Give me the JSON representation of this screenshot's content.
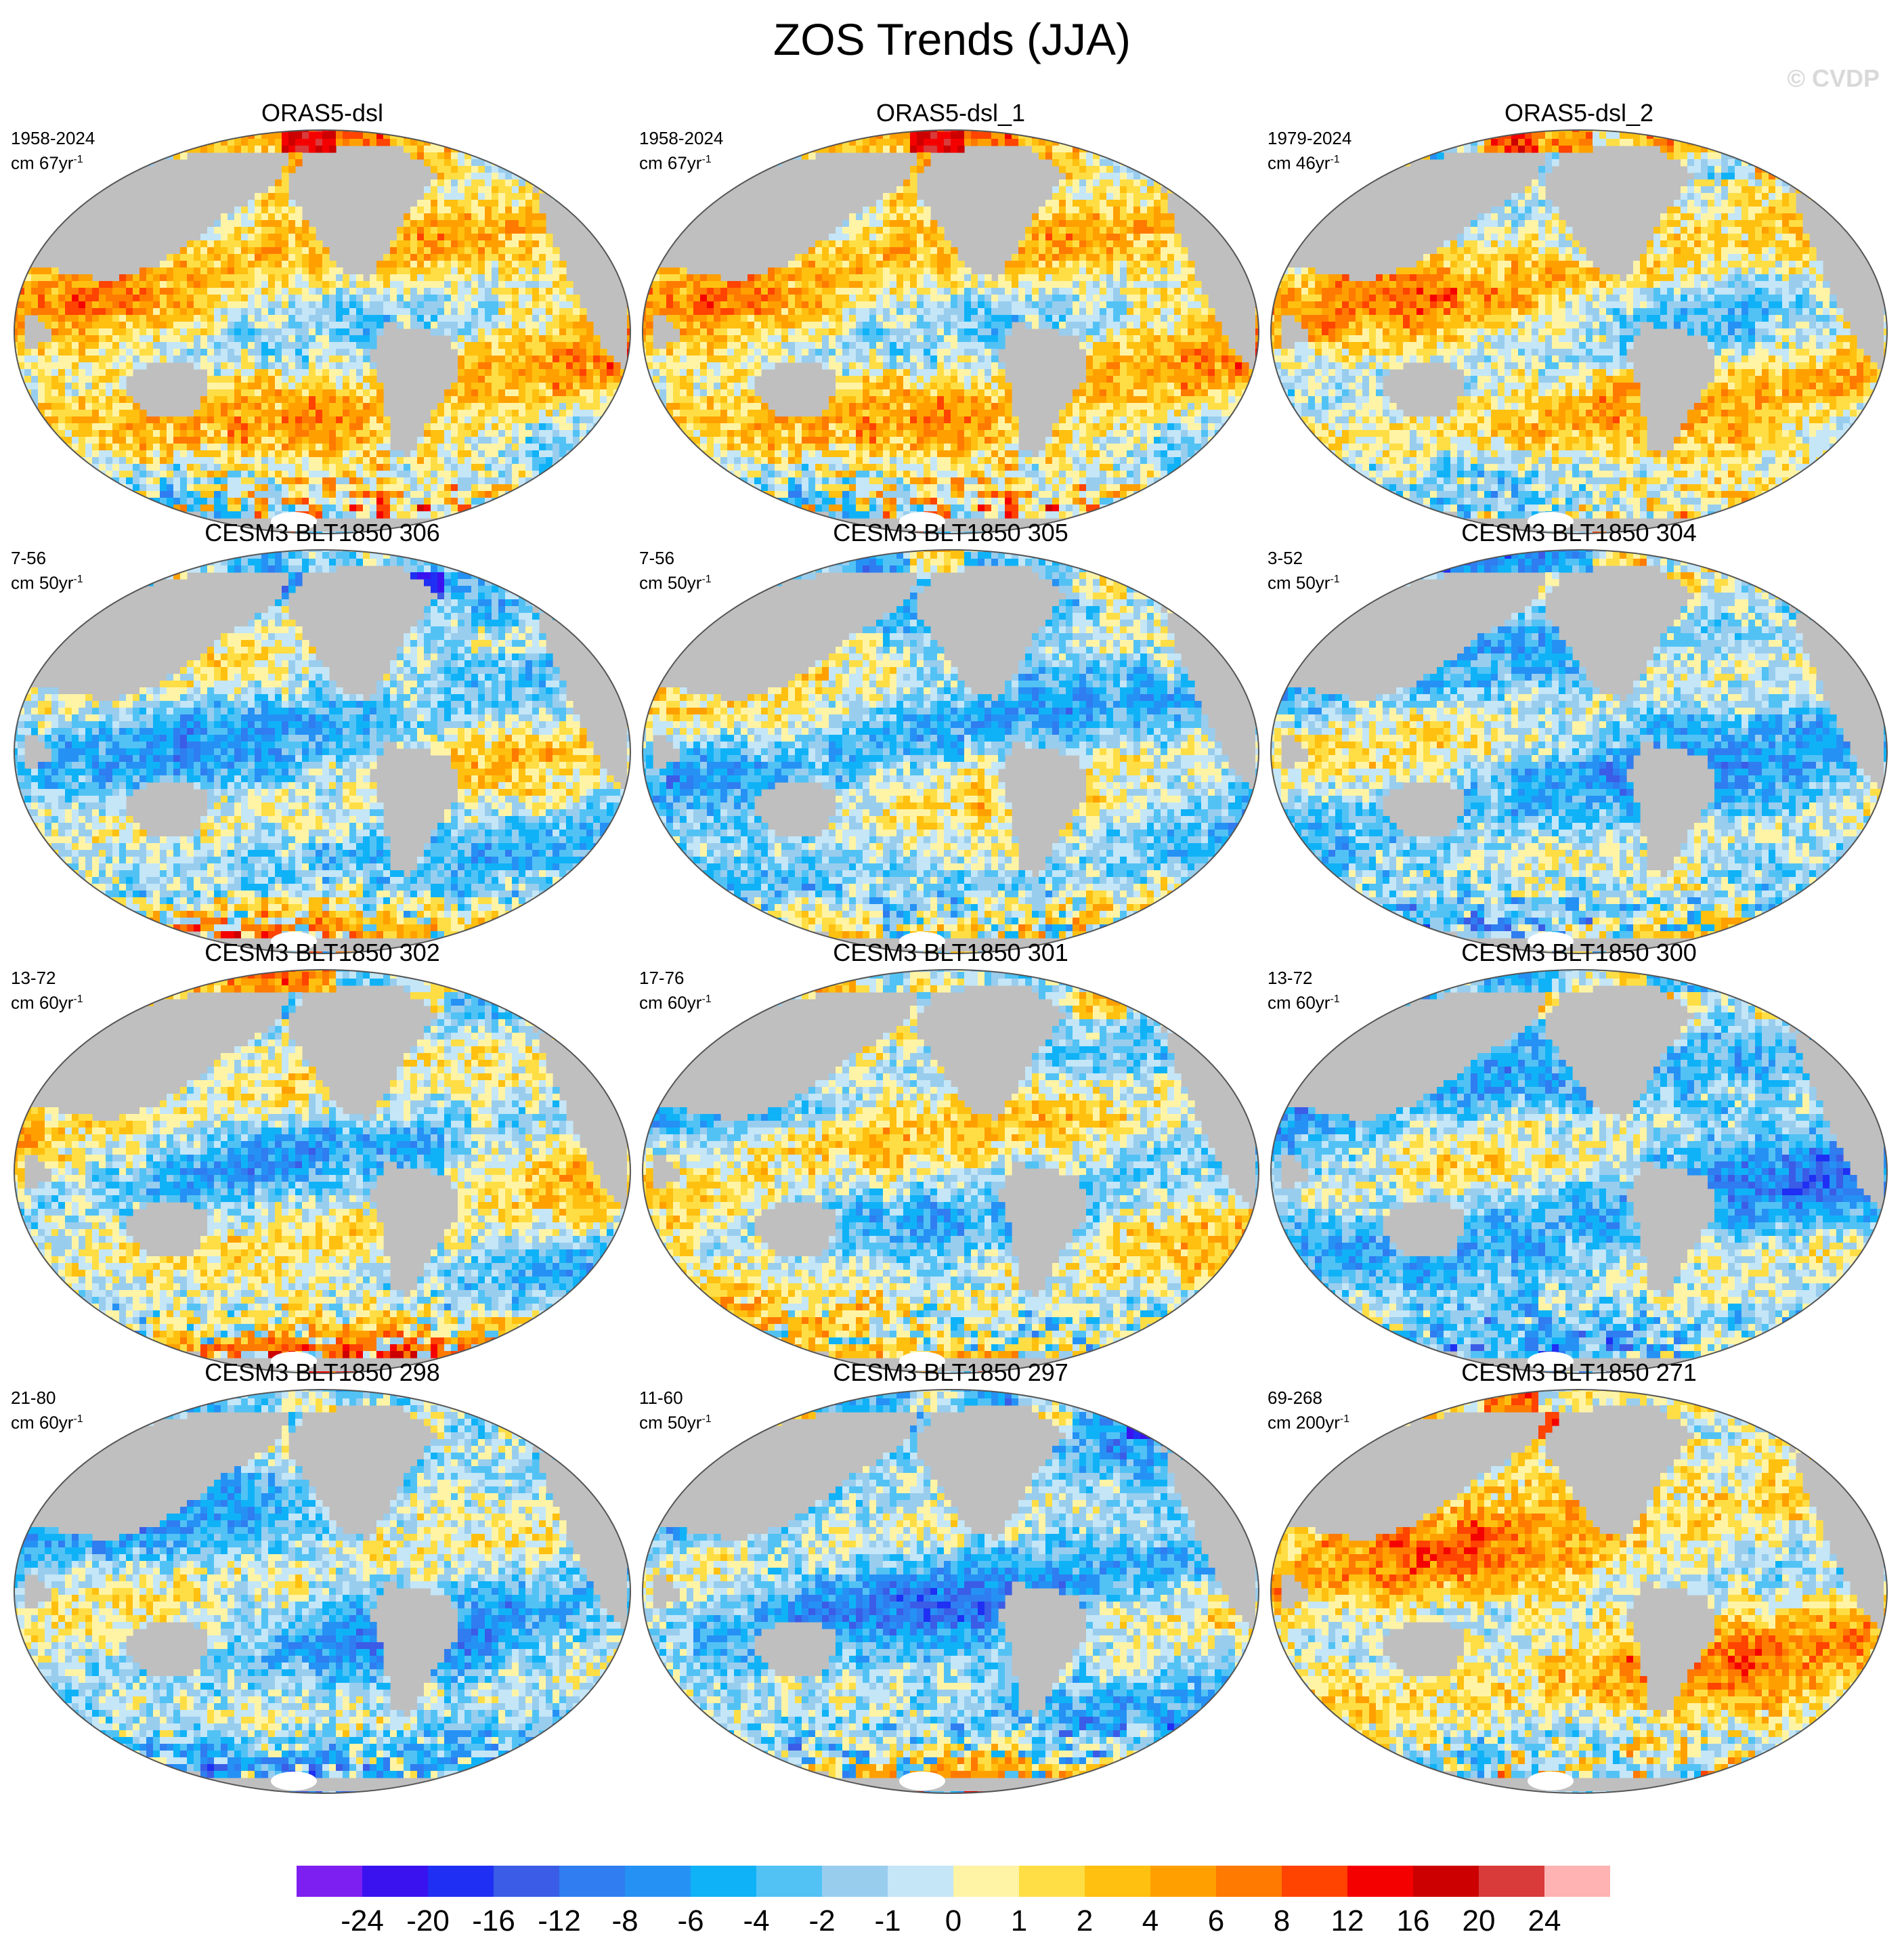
{
  "title": "ZOS Trends (JJA)",
  "watermark": "© CVDP",
  "colors": {
    "land": "#bfbfbf",
    "coast": "#666666",
    "ice": "#ffffff",
    "frame": "#555555"
  },
  "chart_data": {
    "type": "heatmap",
    "projection": "global map (Robinson-like ellipse), Pacific-centered",
    "units": "cm per trend period",
    "colorbar": {
      "labels": [
        "-24",
        "-20",
        "-16",
        "-12",
        "-8",
        "-6",
        "-4",
        "-2",
        "-1",
        "0",
        "1",
        "2",
        "4",
        "6",
        "8",
        "12",
        "16",
        "20",
        "24"
      ],
      "colors": [
        "#7d1ff0",
        "#3a12f0",
        "#1f2ff3",
        "#3b5ce6",
        "#2f7df0",
        "#2591f5",
        "#10b2f7",
        "#52c2f5",
        "#99cdee",
        "#c4e6f7",
        "#fff4a6",
        "#ffde45",
        "#ffc010",
        "#ffa000",
        "#ff7a00",
        "#ff4300",
        "#f50000",
        "#cc0000",
        "#d93a3a",
        "#ffb3b3"
      ]
    },
    "panels": [
      {
        "title": "ORAS5-dsl",
        "range": "1958-2024",
        "unit": "cm 67yr",
        "bias": 0.35,
        "south": -0.9,
        "seed": 11
      },
      {
        "title": "ORAS5-dsl_1",
        "range": "1958-2024",
        "unit": "cm 67yr",
        "bias": 0.35,
        "south": -0.9,
        "seed": 11
      },
      {
        "title": "ORAS5-dsl_2",
        "range": "1979-2024",
        "unit": "cm 46yr",
        "bias": 0.25,
        "south": -0.5,
        "seed": 23
      },
      {
        "title": "CESM3 BLT1850 306",
        "range": "7-56",
        "unit": "cm 50yr",
        "bias": -0.35,
        "south": 0.8,
        "seed": 31
      },
      {
        "title": "CESM3 BLT1850 305",
        "range": "7-56",
        "unit": "cm 50yr",
        "bias": -0.35,
        "south": 0.7,
        "seed": 37
      },
      {
        "title": "CESM3 BLT1850 304",
        "range": "3-52",
        "unit": "cm 50yr",
        "bias": -0.55,
        "south": 0.7,
        "seed": 41
      },
      {
        "title": "CESM3 BLT1850 302",
        "range": "13-72",
        "unit": "cm 60yr",
        "bias": -0.15,
        "south": 0.9,
        "seed": 43
      },
      {
        "title": "CESM3 BLT1850 301",
        "range": "17-76",
        "unit": "cm 60yr",
        "bias": -0.1,
        "south": 0.8,
        "seed": 47
      },
      {
        "title": "CESM3 BLT1850 300",
        "range": "13-72",
        "unit": "cm 60yr",
        "bias": -0.6,
        "south": 0.6,
        "seed": 53
      },
      {
        "title": "CESM3 BLT1850 298",
        "range": "21-80",
        "unit": "cm 60yr",
        "bias": -0.45,
        "south": -0.7,
        "seed": 59
      },
      {
        "title": "CESM3 BLT1850 297",
        "range": "11-60",
        "unit": "cm 50yr",
        "bias": -0.6,
        "south": 1.0,
        "seed": 61
      },
      {
        "title": "CESM3 BLT1850 271",
        "range": "69-268",
        "unit": "cm 200yr",
        "bias": 0.45,
        "south": -0.7,
        "seed": 67
      }
    ]
  }
}
